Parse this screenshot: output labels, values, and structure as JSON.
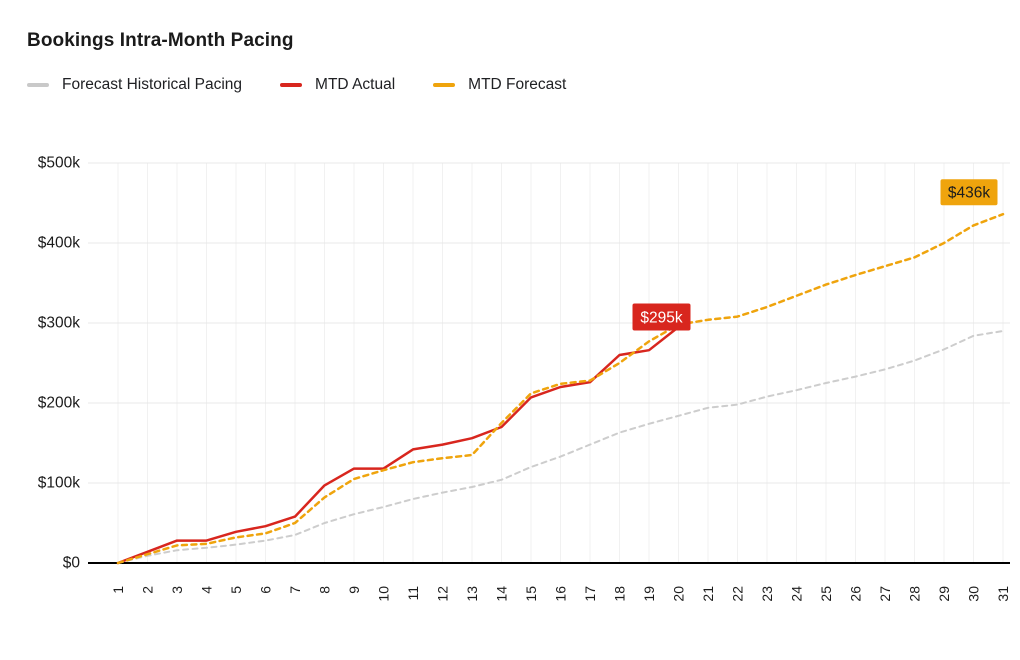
{
  "header": {
    "title": "Bookings Intra-Month Pacing"
  },
  "legend": [
    {
      "label": "Forecast Historical Pacing",
      "color": "#c9c9c9"
    },
    {
      "label": "MTD Actual",
      "color": "#d8261e"
    },
    {
      "label": "MTD Forecast",
      "color": "#efa40d"
    }
  ],
  "chart_data": {
    "type": "line",
    "title": "Bookings Intra-Month Pacing",
    "xlabel": "",
    "ylabel": "",
    "x_unit": "day of month",
    "x": [
      1,
      2,
      3,
      4,
      5,
      6,
      7,
      8,
      9,
      10,
      11,
      12,
      13,
      14,
      15,
      16,
      17,
      18,
      19,
      20,
      21,
      22,
      23,
      24,
      25,
      26,
      27,
      28,
      29,
      30,
      31
    ],
    "ylim_k": [
      0,
      500
    ],
    "y_ticks": [
      {
        "label": "$500k",
        "value_k": 500
      },
      {
        "label": "$400k",
        "value_k": 400
      },
      {
        "label": "$300k",
        "value_k": 300
      },
      {
        "label": "$200k",
        "value_k": 200
      },
      {
        "label": "$100k",
        "value_k": 100
      },
      {
        "label": "$0",
        "value_k": 0
      }
    ],
    "grid": true,
    "legend_position": "top-left",
    "series": [
      {
        "name": "Forecast Historical Pacing",
        "color": "#cdcdcd",
        "dashed": true,
        "values_k": [
          0,
          9,
          16,
          19,
          23,
          28,
          35,
          50,
          61,
          70,
          80,
          88,
          95,
          104,
          120,
          133,
          148,
          163,
          174,
          184,
          194,
          198,
          208,
          216,
          225,
          233,
          242,
          253,
          267,
          284,
          290
        ]
      },
      {
        "name": "MTD Actual",
        "color": "#d8261e",
        "dashed": false,
        "values_k": [
          0,
          14,
          28,
          28,
          39,
          46,
          58,
          97,
          118,
          118,
          142,
          148,
          156,
          170,
          207,
          220,
          226,
          260,
          266,
          295
        ]
      },
      {
        "name": "MTD Forecast",
        "color": "#efa40d",
        "dashed": true,
        "values_k": [
          0,
          11,
          22,
          24,
          32,
          37,
          50,
          82,
          105,
          116,
          126,
          131,
          135,
          175,
          212,
          224,
          228,
          250,
          277,
          298,
          304,
          308,
          320,
          334,
          348,
          360,
          371,
          382,
          400,
          422,
          436
        ]
      }
    ],
    "annotations": [
      {
        "text": "$295k",
        "series": "MTD Actual",
        "day": 20,
        "value_k": 295,
        "bg": "#d8261e",
        "fg": "#ffffff"
      },
      {
        "text": "$436k",
        "series": "MTD Forecast",
        "day": 31,
        "value_k": 436,
        "bg": "#efa40d",
        "fg": "#1d1d1d"
      }
    ]
  }
}
